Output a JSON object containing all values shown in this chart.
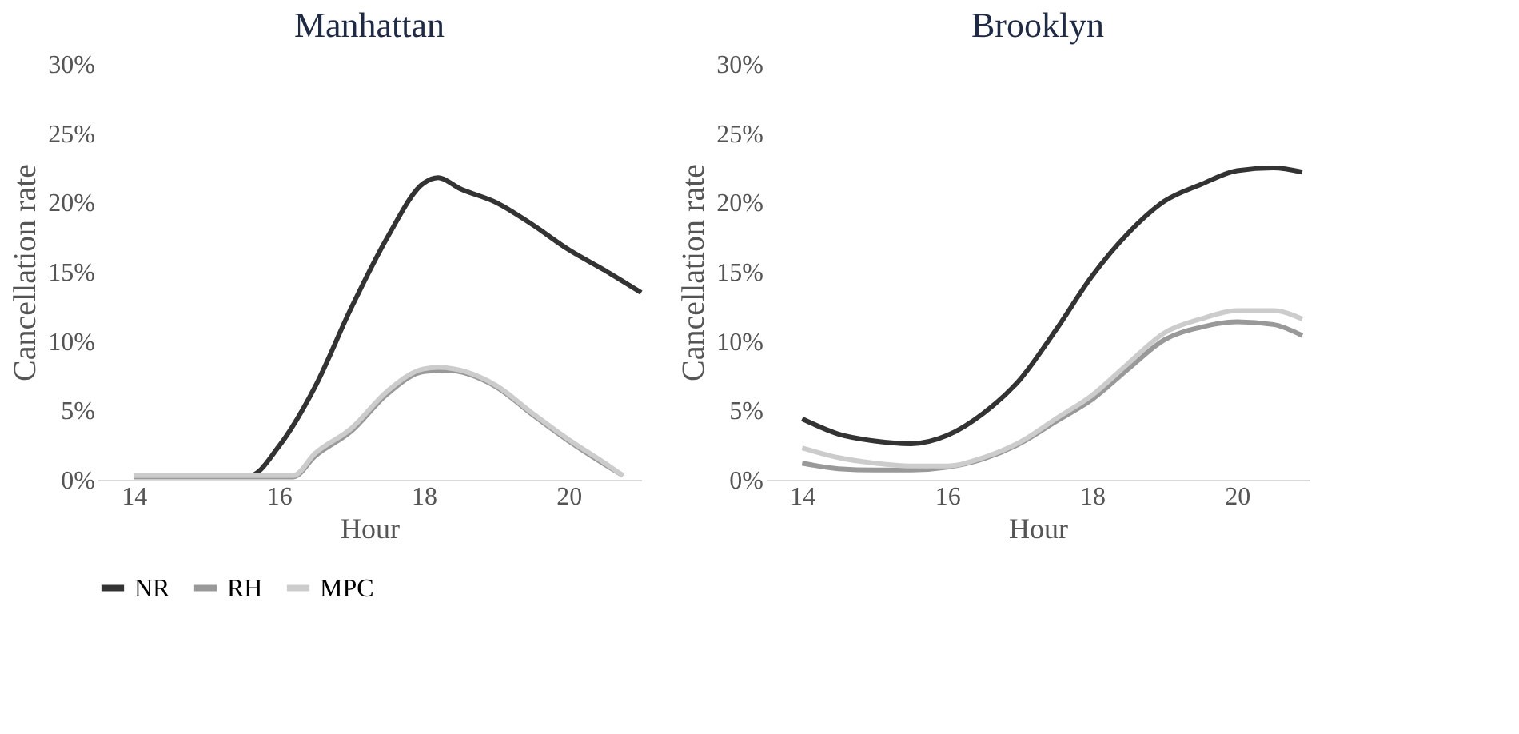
{
  "chart_data": [
    {
      "type": "line",
      "title": "Manhattan",
      "xlabel": "Hour",
      "ylabel": "Cancellation rate",
      "xlim": [
        13.5,
        21
      ],
      "xticks": [
        14,
        16,
        18,
        20
      ],
      "ylim": [
        0,
        30
      ],
      "yticks": [
        {
          "value": 0,
          "label": "0%"
        },
        {
          "value": 5,
          "label": "5%"
        },
        {
          "value": 10,
          "label": "10%"
        },
        {
          "value": 15,
          "label": "15%"
        },
        {
          "value": 20,
          "label": "20%"
        },
        {
          "value": 25,
          "label": "25%"
        },
        {
          "value": 30,
          "label": "30%"
        }
      ],
      "grid": false,
      "legend": "bottom",
      "marker": "none",
      "line_style": "solid",
      "series": [
        {
          "name": "NR",
          "color": "#333333",
          "x": [
            14,
            15,
            15.6,
            16,
            16.5,
            17,
            17.5,
            18,
            18.2,
            18.5,
            19,
            19.5,
            20,
            20.5,
            21
          ],
          "values": [
            0.3,
            0.3,
            0.3,
            2.4,
            6.7,
            12.4,
            17.5,
            21.4,
            21.8,
            21.0,
            20.0,
            18.4,
            16.6,
            15.1,
            13.5
          ]
        },
        {
          "name": "RH",
          "color": "#999999",
          "x": [
            14,
            15,
            16.2,
            16.5,
            17,
            17.5,
            18,
            18.3,
            19,
            19.5,
            20,
            20.5,
            20.75
          ],
          "values": [
            0.2,
            0.2,
            0.2,
            1.7,
            3.5,
            6.2,
            7.8,
            7.9,
            6.7,
            4.7,
            2.8,
            1.1,
            0.3
          ]
        },
        {
          "name": "MPC",
          "color": "#cccccc",
          "x": [
            14,
            15,
            16.2,
            16.5,
            17,
            17.5,
            18,
            18.2,
            19,
            19.5,
            20,
            20.5,
            20.75
          ],
          "values": [
            0.3,
            0.3,
            0.3,
            1.9,
            3.7,
            6.4,
            8.0,
            8.1,
            6.8,
            4.8,
            2.9,
            1.2,
            0.3
          ]
        }
      ]
    },
    {
      "type": "line",
      "title": "Brooklyn",
      "xlabel": "Hour",
      "ylabel": "Cancellation rate",
      "xlim": [
        13.5,
        21
      ],
      "xticks": [
        14,
        16,
        18,
        20
      ],
      "ylim": [
        0,
        30
      ],
      "yticks": [
        {
          "value": 0,
          "label": "0%"
        },
        {
          "value": 5,
          "label": "5%"
        },
        {
          "value": 10,
          "label": "10%"
        },
        {
          "value": 15,
          "label": "15%"
        },
        {
          "value": 20,
          "label": "20%"
        },
        {
          "value": 25,
          "label": "25%"
        },
        {
          "value": 30,
          "label": "30%"
        }
      ],
      "grid": false,
      "legend": "bottom",
      "marker": "none",
      "line_style": "solid",
      "series": [
        {
          "name": "NR",
          "color": "#333333",
          "x": [
            14,
            14.5,
            15,
            15.5,
            16,
            16.5,
            17,
            17.5,
            18,
            18.5,
            19,
            19.5,
            20,
            20.5,
            20.9
          ],
          "values": [
            4.4,
            3.3,
            2.8,
            2.6,
            3.2,
            4.8,
            7.2,
            10.8,
            14.7,
            17.8,
            20.1,
            21.3,
            22.3,
            22.5,
            22.2
          ]
        },
        {
          "name": "RH",
          "color": "#999999",
          "x": [
            14,
            14.5,
            15,
            15.5,
            16,
            16.5,
            17,
            17.5,
            18,
            18.5,
            19,
            19.5,
            20,
            20.5,
            20.9
          ],
          "values": [
            1.2,
            0.8,
            0.7,
            0.7,
            0.9,
            1.5,
            2.6,
            4.2,
            5.8,
            8.0,
            10.1,
            11.0,
            11.4,
            11.2,
            10.4
          ]
        },
        {
          "name": "MPC",
          "color": "#cccccc",
          "x": [
            14,
            14.5,
            15,
            15.5,
            16,
            16.5,
            17,
            17.5,
            18,
            18.5,
            19,
            19.5,
            20,
            20.5,
            20.9
          ],
          "values": [
            2.3,
            1.6,
            1.2,
            1.0,
            1.0,
            1.6,
            2.7,
            4.4,
            6.1,
            8.4,
            10.6,
            11.6,
            12.2,
            12.2,
            11.6
          ]
        }
      ]
    }
  ]
}
